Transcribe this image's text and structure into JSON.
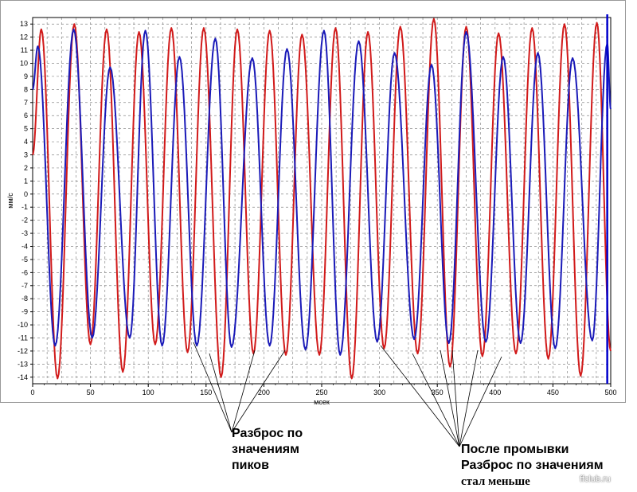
{
  "chart_data": {
    "type": "line",
    "xlabel": "мсек",
    "ylabel": "мм/с",
    "xlim": [
      0,
      500
    ],
    "ylim": [
      -14.5,
      13.5
    ],
    "xticks": [
      0,
      50,
      100,
      150,
      200,
      250,
      300,
      350,
      400,
      450,
      500
    ],
    "yticks": [
      13,
      12,
      11,
      10,
      9,
      8,
      7,
      6,
      5,
      4,
      3,
      2,
      1,
      0,
      -1,
      -2,
      -3,
      -4,
      -5,
      -6,
      -7,
      -8,
      -9,
      -10,
      -11,
      -12,
      -13,
      -14
    ],
    "grid": true,
    "period_ms": 28.2,
    "series": [
      {
        "color": "#d11a1a",
        "start_value": 3,
        "peaks": [
          [
            7.5,
            12.6
          ],
          [
            21.5,
            -14.1
          ],
          [
            36,
            13.0
          ],
          [
            50,
            -11.5
          ],
          [
            64,
            12.6
          ],
          [
            78,
            -13.6
          ],
          [
            92,
            12.4
          ],
          [
            106,
            -11.5
          ],
          [
            120,
            12.7
          ],
          [
            134,
            -12.1
          ],
          [
            148,
            12.7
          ],
          [
            163,
            -14.0
          ],
          [
            177,
            12.6
          ],
          [
            191,
            -12.2
          ],
          [
            205,
            12.5
          ],
          [
            219,
            -12.3
          ],
          [
            233,
            12.2
          ],
          [
            248,
            -12.3
          ],
          [
            262,
            12.7
          ],
          [
            276,
            -14.1
          ],
          [
            290,
            12.4
          ],
          [
            304,
            -11.8
          ],
          [
            318,
            12.8
          ],
          [
            333,
            -12.2
          ],
          [
            347,
            13.4
          ],
          [
            361,
            -13.2
          ],
          [
            375,
            12.8
          ],
          [
            389,
            -12.4
          ],
          [
            403,
            12.3
          ],
          [
            418,
            -12.2
          ],
          [
            432,
            12.7
          ],
          [
            446,
            -12.6
          ],
          [
            460,
            13.0
          ],
          [
            474,
            -13.9
          ],
          [
            488,
            13.1
          ],
          [
            500,
            -12.0
          ]
        ]
      },
      {
        "color": "#1a1ab8",
        "start_value": 8,
        "peaks": [
          [
            4.5,
            11.3
          ],
          [
            19.5,
            -11.6
          ],
          [
            35.5,
            12.6
          ],
          [
            51.5,
            -11.0
          ],
          [
            67,
            9.7
          ],
          [
            84,
            -11.0
          ],
          [
            97.5,
            12.5
          ],
          [
            112,
            -11.6
          ],
          [
            127,
            10.5
          ],
          [
            142,
            -11.6
          ],
          [
            158,
            11.9
          ],
          [
            172,
            -11.7
          ],
          [
            190,
            10.4
          ],
          [
            205,
            -11.6
          ],
          [
            220,
            11.1
          ],
          [
            236,
            -11.9
          ],
          [
            252,
            12.5
          ],
          [
            266,
            -12.3
          ],
          [
            282,
            11.7
          ],
          [
            298,
            -11.3
          ],
          [
            313,
            10.8
          ],
          [
            330,
            -11.1
          ],
          [
            345,
            9.9
          ],
          [
            360,
            -11.4
          ],
          [
            375,
            12.4
          ],
          [
            392,
            -11.3
          ],
          [
            407,
            10.5
          ],
          [
            422,
            -11.4
          ],
          [
            437,
            10.8
          ],
          [
            452,
            -11.8
          ],
          [
            467,
            10.4
          ],
          [
            484,
            -11.2
          ],
          [
            497,
            11.5
          ],
          [
            500,
            6.5
          ]
        ]
      }
    ],
    "marker_x": 497,
    "marker_color": "#0000cc"
  },
  "annotations": {
    "left": {
      "line1": "Разброс по",
      "line2": "значениям",
      "line3": "пиков"
    },
    "right": {
      "line1": "После промывки",
      "line2": "Разброс по значениям",
      "line3": "стал меньше"
    }
  },
  "watermark": "ffclub.ru"
}
